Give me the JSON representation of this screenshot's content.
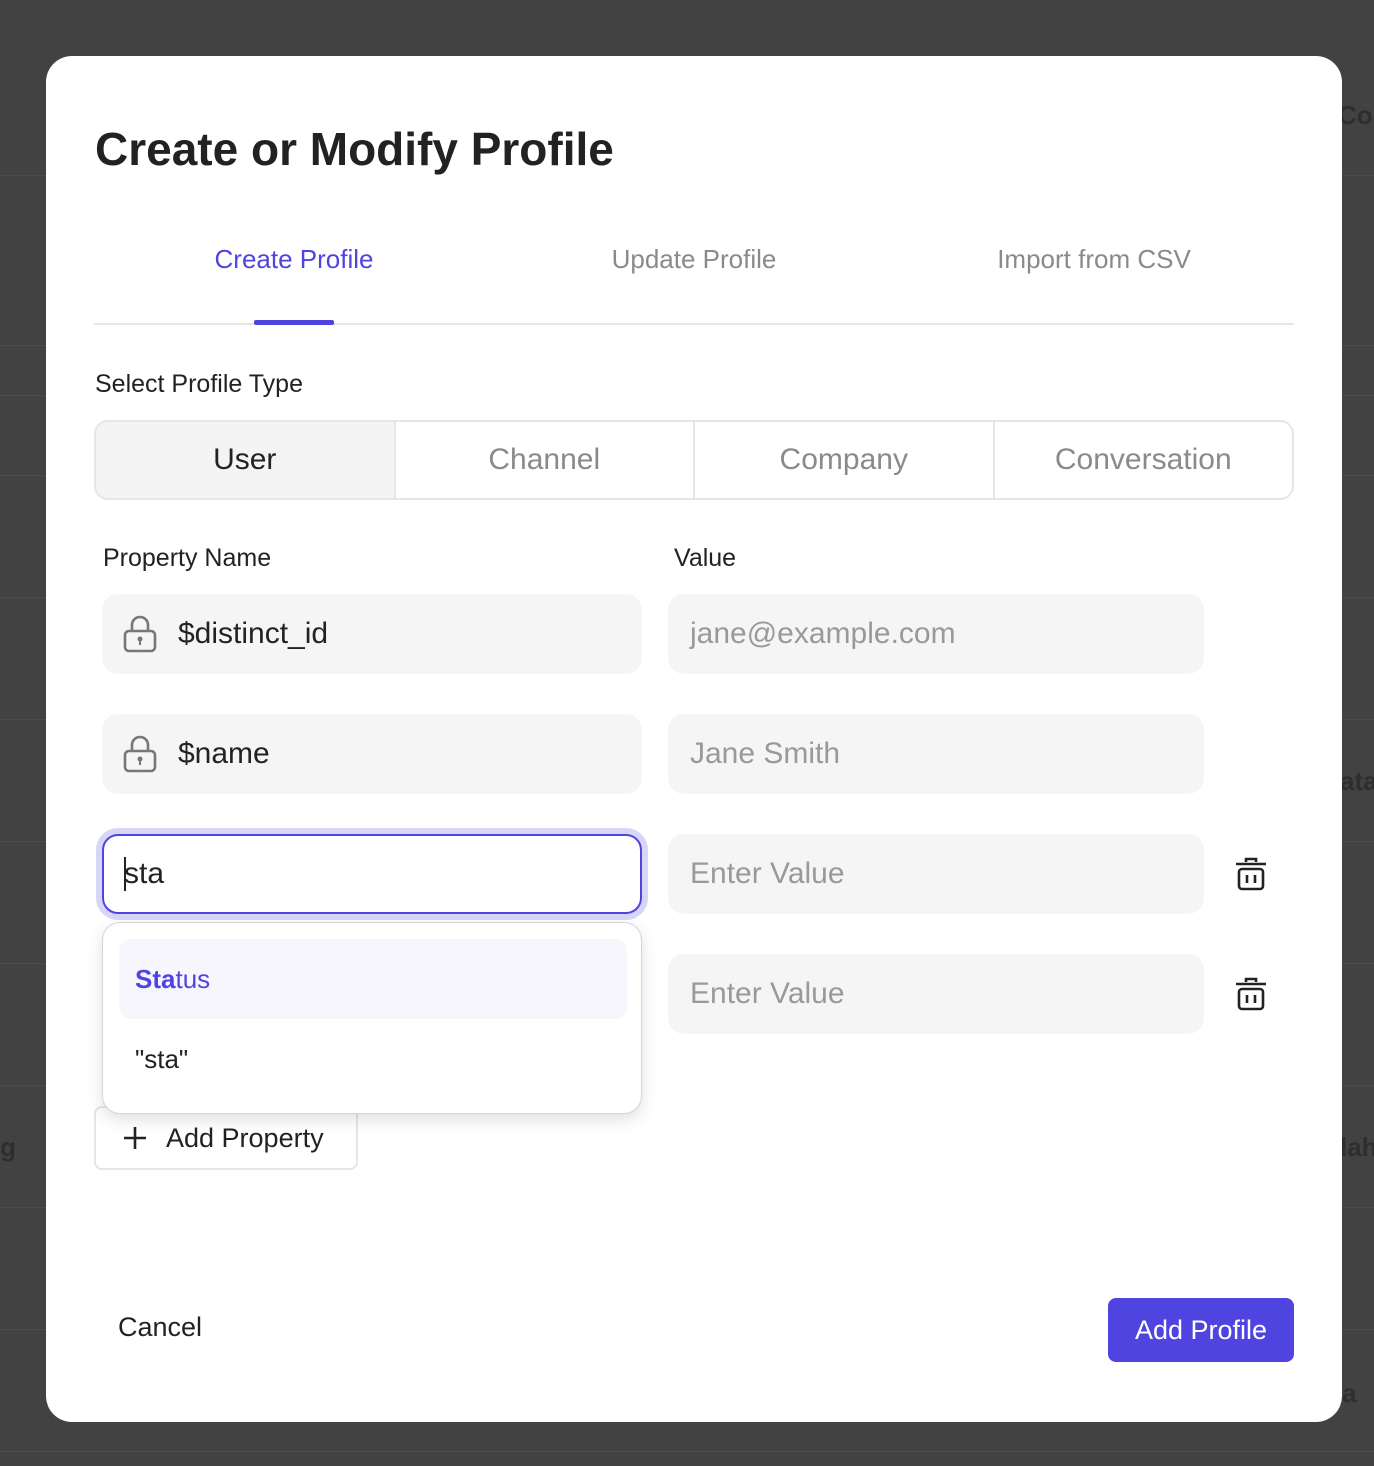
{
  "background": {
    "fragments": [
      "Col",
      "ata",
      "lah",
      "a",
      "g"
    ]
  },
  "modal": {
    "title": "Create or Modify Profile",
    "tabs": [
      {
        "label": "Create Profile",
        "active": true
      },
      {
        "label": "Update Profile",
        "active": false
      },
      {
        "label": "Import from CSV",
        "active": false
      }
    ],
    "profile_type_label": "Select Profile Type",
    "profile_types": [
      {
        "label": "User",
        "selected": true
      },
      {
        "label": "Channel",
        "selected": false
      },
      {
        "label": "Company",
        "selected": false
      },
      {
        "label": "Conversation",
        "selected": false
      }
    ],
    "property_name_header": "Property Name",
    "value_header": "Value",
    "rows": [
      {
        "name": "$distinct_id",
        "value_placeholder": "jane@example.com",
        "locked": true
      },
      {
        "name": "$name",
        "value_placeholder": "Jane Smith",
        "locked": true
      },
      {
        "name": "sta",
        "value_placeholder": "Enter Value",
        "locked": false
      },
      {
        "name": "",
        "value_placeholder": "Enter Value",
        "locked": false
      }
    ],
    "autocomplete": {
      "match_prefix": "Sta",
      "match_rest": "tus",
      "literal_option": "\"sta\""
    },
    "add_property_label": "Add Property",
    "cancel_label": "Cancel",
    "submit_label": "Add Profile",
    "accent_color": "#4f44e0"
  }
}
